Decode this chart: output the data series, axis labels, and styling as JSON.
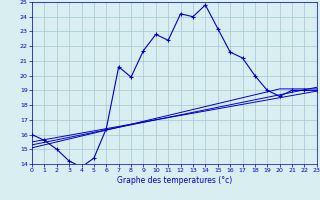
{
  "xlabel": "Graphe des temperatures (°c)",
  "bg_color": "#d8eef0",
  "line_color": "#0000cc",
  "grid_color": "#a0c8d0",
  "x_main": [
    0,
    1,
    2,
    3,
    4,
    5,
    6,
    7,
    8,
    9,
    10,
    11,
    12,
    13,
    14,
    15,
    16,
    17,
    18,
    19,
    20,
    21,
    22,
    23
  ],
  "y_main": [
    16.0,
    15.6,
    15.0,
    14.2,
    13.8,
    14.4,
    16.4,
    20.6,
    19.9,
    21.7,
    22.8,
    22.4,
    24.2,
    24.0,
    24.8,
    23.2,
    21.6,
    21.2,
    20.0,
    19.0,
    18.6,
    19.0,
    19.0,
    19.0
  ],
  "y_trend1": [
    15.5,
    15.65,
    15.8,
    15.95,
    16.1,
    16.25,
    16.4,
    16.55,
    16.7,
    16.85,
    17.0,
    17.15,
    17.3,
    17.45,
    17.6,
    17.75,
    17.9,
    18.05,
    18.2,
    18.35,
    18.5,
    18.65,
    18.8,
    18.95
  ],
  "y_trend2": [
    15.3,
    15.47,
    15.64,
    15.81,
    15.98,
    16.15,
    16.32,
    16.49,
    16.66,
    16.83,
    17.0,
    17.17,
    17.34,
    17.51,
    17.68,
    17.85,
    18.02,
    18.19,
    18.36,
    18.53,
    18.7,
    18.87,
    19.04,
    19.21
  ],
  "y_trend3": [
    15.1,
    15.3,
    15.5,
    15.7,
    15.9,
    16.1,
    16.3,
    16.5,
    16.7,
    16.9,
    17.1,
    17.3,
    17.5,
    17.7,
    17.9,
    18.1,
    18.3,
    18.5,
    18.7,
    18.9,
    19.1,
    19.1,
    19.1,
    19.1
  ],
  "ylim": [
    14,
    25
  ],
  "xlim": [
    0,
    23
  ],
  "yticks": [
    14,
    15,
    16,
    17,
    18,
    19,
    20,
    21,
    22,
    23,
    24,
    25
  ],
  "xticks": [
    0,
    1,
    2,
    3,
    4,
    5,
    6,
    7,
    8,
    9,
    10,
    11,
    12,
    13,
    14,
    15,
    16,
    17,
    18,
    19,
    20,
    21,
    22,
    23
  ]
}
